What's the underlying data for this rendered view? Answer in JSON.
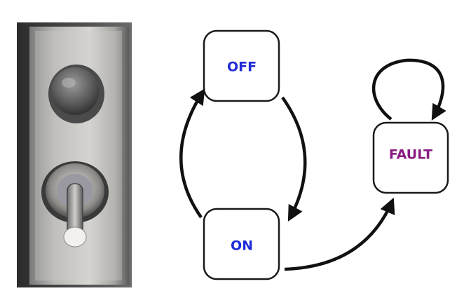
{
  "states": {
    "off": {
      "label": "OFF",
      "color": "#1f2bd8"
    },
    "on": {
      "label": "ON",
      "color": "#1f2bd8"
    },
    "fault": {
      "label": "FAULT",
      "color": "#8a1c83"
    }
  },
  "transitions": [
    {
      "from": "off",
      "to": "on"
    },
    {
      "from": "on",
      "to": "off"
    },
    {
      "from": "on",
      "to": "fault"
    },
    {
      "from": "fault",
      "to": "fault"
    }
  ],
  "colors": {
    "node_border": "#1a1a1a",
    "node_fill": "#ffffff",
    "arrow": "#111111",
    "panel_light": "#c8c6c3",
    "panel_dark": "#3d3d3d"
  },
  "device_photo": {
    "icon": "toggle-switch-panel-icon"
  }
}
